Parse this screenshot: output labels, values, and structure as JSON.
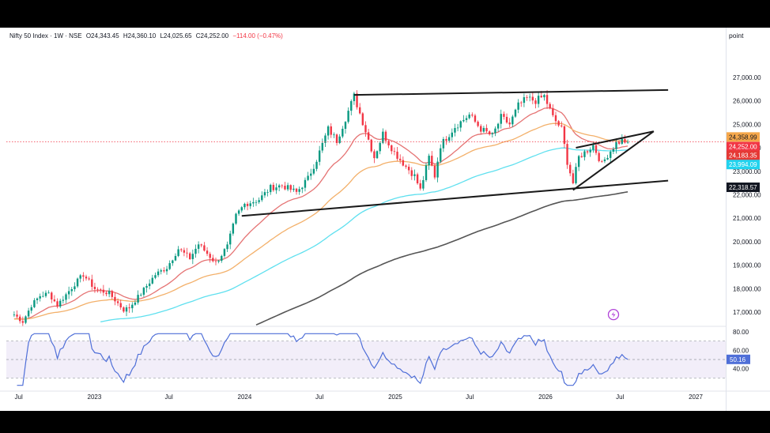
{
  "header": {
    "symbol": "Nifty 50 Index · 1W · NSE",
    "open": "O24,343.45",
    "high": "H24,360.10",
    "low": "L24,025.65",
    "close": "C24,252.00",
    "change": "−114.00 (−0.47%)"
  },
  "scale_mode": "point",
  "price_badges": [
    {
      "label": "24,358.99",
      "value": 24358.99,
      "color": "#f5a74b"
    },
    {
      "label": "24,252.00",
      "value": 24252.0,
      "color": "#f23645"
    },
    {
      "label": "24,183.35",
      "value": 24183.35,
      "color": "#e53935"
    },
    {
      "label": "23,994.09",
      "value": 23994.09,
      "color": "#22d3ee"
    },
    {
      "label": "22,318.57",
      "value": 22318.57,
      "color": "#131722"
    }
  ],
  "rsi_badge": {
    "label": "50.16",
    "value": 50.16,
    "color": "#4f6fd8"
  },
  "chart_data": [
    {
      "type": "candlestick",
      "title": "",
      "xlabel": "",
      "ylabel": "",
      "ylim": [
        16500,
        27600
      ],
      "x_ticks": [
        "Jul",
        "2023",
        "Jul",
        "2024",
        "Jul",
        "2025",
        "Jul",
        "2026",
        "Jul",
        "2027"
      ],
      "y_ticks": [
        "27,000.00",
        "26,000.00",
        "25,000.00",
        "24,000.00",
        "23,000.00",
        "22,000.00",
        "21,000.00",
        "20,000.00",
        "19,000.00",
        "18,000.00",
        "17,000.00"
      ],
      "y_tick_values": [
        27000,
        26000,
        25000,
        24000,
        23000,
        22000,
        21000,
        20000,
        19000,
        18000,
        17000
      ],
      "anchors_close": [
        [
          "2022-06-20",
          16900
        ],
        [
          "2022-07-11",
          16600
        ],
        [
          "2022-08-01",
          17300
        ],
        [
          "2022-08-22",
          17700
        ],
        [
          "2022-09-12",
          17800
        ],
        [
          "2022-10-03",
          17300
        ],
        [
          "2022-11-14",
          18200
        ],
        [
          "2022-12-05",
          18600
        ],
        [
          "2023-01-02",
          18000
        ],
        [
          "2023-02-06",
          17800
        ],
        [
          "2023-03-13",
          17100
        ],
        [
          "2023-03-27",
          17200
        ],
        [
          "2023-04-24",
          17800
        ],
        [
          "2023-05-29",
          18600
        ],
        [
          "2023-06-26",
          18900
        ],
        [
          "2023-07-24",
          19700
        ],
        [
          "2023-08-21",
          19300
        ],
        [
          "2023-09-11",
          19900
        ],
        [
          "2023-10-23",
          19100
        ],
        [
          "2023-11-20",
          19800
        ],
        [
          "2023-12-11",
          21100
        ],
        [
          "2024-01-01",
          21600
        ],
        [
          "2024-02-05",
          21800
        ],
        [
          "2024-03-04",
          22300
        ],
        [
          "2024-04-01",
          22400
        ],
        [
          "2024-05-06",
          22100
        ],
        [
          "2024-06-03",
          22700
        ],
        [
          "2024-06-24",
          23500
        ],
        [
          "2024-07-22",
          24800
        ],
        [
          "2024-08-12",
          24300
        ],
        [
          "2024-09-23",
          26200
        ],
        [
          "2024-10-14",
          25100
        ],
        [
          "2024-11-11",
          23600
        ],
        [
          "2024-12-02",
          24600
        ],
        [
          "2024-12-30",
          23800
        ],
        [
          "2025-01-27",
          23200
        ],
        [
          "2025-02-17",
          22800
        ],
        [
          "2025-03-03",
          22200
        ],
        [
          "2025-03-24",
          23600
        ],
        [
          "2025-04-07",
          22800
        ],
        [
          "2025-04-21",
          24100
        ],
        [
          "2025-05-26",
          24900
        ],
        [
          "2025-06-30",
          25400
        ],
        [
          "2025-07-28",
          24800
        ],
        [
          "2025-08-25",
          24500
        ],
        [
          "2025-09-15",
          25300
        ],
        [
          "2025-10-06",
          25000
        ],
        [
          "2025-10-27",
          25800
        ],
        [
          "2025-11-17",
          26100
        ],
        [
          "2025-12-08",
          26000
        ],
        [
          "2025-12-29",
          26200
        ],
        [
          "2026-01-19",
          25300
        ],
        [
          "2026-02-09",
          24800
        ],
        [
          "2026-02-23",
          23400
        ],
        [
          "2026-03-09",
          22500
        ],
        [
          "2026-03-23",
          23600
        ],
        [
          "2026-04-06",
          23800
        ],
        [
          "2026-04-27",
          24100
        ],
        [
          "2026-05-18",
          23300
        ],
        [
          "2026-06-01",
          23700
        ],
        [
          "2026-06-22",
          24200
        ],
        [
          "2026-07-06",
          24300
        ],
        [
          "2026-07-20",
          24252
        ]
      ],
      "ema_labels": [
        "EMA 20",
        "EMA 50",
        "EMA 100",
        "EMA 200"
      ],
      "ema_colors": [
        "#e57373",
        "#f3b06a",
        "#5fe0ef",
        "#555555"
      ],
      "trendlines": [
        {
          "p1": [
            "2024-09-23",
            26250
          ],
          "p2": [
            "2026-10-26",
            26460
          ]
        },
        {
          "p1": [
            "2023-12-25",
            21100
          ],
          "p2": [
            "2026-10-26",
            22600
          ]
        },
        {
          "p1": [
            "2026-03-09",
            22200
          ],
          "p2": [
            "2026-09-21",
            24700
          ]
        },
        {
          "p1": [
            "2026-03-16",
            24000
          ],
          "p2": [
            "2026-09-21",
            24700
          ]
        }
      ]
    },
    {
      "type": "line",
      "title": "",
      "ylim": [
        20,
        80
      ],
      "y_ticks": [
        "80.00",
        "60.00",
        "40.00"
      ],
      "y_tick_values": [
        80,
        60,
        40
      ],
      "band": [
        30,
        70
      ],
      "last_value": 50.16
    }
  ]
}
